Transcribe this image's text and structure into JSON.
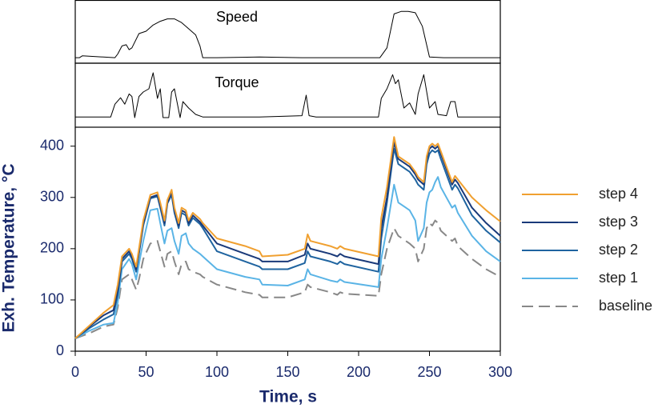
{
  "chart_data": [
    {
      "type": "line",
      "title": "Speed",
      "xlim": [
        0,
        300
      ],
      "ylim": [
        0,
        100
      ],
      "series": [
        {
          "name": "Speed",
          "color": "#000000",
          "x": [
            0,
            3,
            5,
            28,
            30,
            33,
            36,
            38,
            40,
            45,
            50,
            55,
            60,
            65,
            70,
            75,
            80,
            85,
            88,
            90,
            100,
            130,
            160,
            200,
            215,
            220,
            225,
            230,
            235,
            240,
            245,
            250,
            260,
            300
          ],
          "values": [
            9,
            9,
            12,
            9,
            15,
            28,
            30,
            22,
            25,
            48,
            52,
            62,
            68,
            72,
            72,
            66,
            56,
            46,
            28,
            9,
            9,
            10,
            9,
            9,
            9,
            25,
            80,
            84,
            84,
            82,
            60,
            10,
            9,
            9
          ]
        }
      ]
    },
    {
      "type": "line",
      "title": "Torque",
      "xlim": [
        0,
        300
      ],
      "ylim": [
        0,
        100
      ],
      "series": [
        {
          "name": "Torque",
          "color": "#000000",
          "x": [
            0,
            25,
            28,
            32,
            35,
            38,
            40,
            42,
            45,
            48,
            52,
            55,
            58,
            60,
            62,
            66,
            68,
            70,
            74,
            76,
            80,
            85,
            90,
            130,
            160,
            163,
            165,
            170,
            214,
            216,
            220,
            224,
            226,
            228,
            232,
            236,
            240,
            242,
            246,
            250,
            254,
            256,
            262,
            265,
            268,
            270,
            300
          ],
          "values": [
            16,
            16,
            36,
            46,
            36,
            52,
            48,
            15,
            48,
            55,
            60,
            85,
            45,
            60,
            15,
            15,
            55,
            60,
            15,
            40,
            30,
            20,
            16,
            16,
            18,
            50,
            18,
            16,
            16,
            45,
            60,
            82,
            68,
            74,
            30,
            38,
            20,
            52,
            82,
            30,
            40,
            20,
            18,
            40,
            40,
            16,
            16
          ]
        }
      ]
    },
    {
      "type": "line",
      "x_label": "Time, s",
      "y_label": "Exh. Temperature, °C",
      "xlim": [
        0,
        300
      ],
      "xticks": [
        0,
        50,
        100,
        150,
        200,
        250,
        300
      ],
      "ylim": [
        0,
        437
      ],
      "yticks": [
        0,
        100,
        200,
        300,
        400
      ],
      "legend": "right",
      "x": [
        0,
        10,
        20,
        27,
        30,
        33,
        38,
        40,
        43,
        45,
        48,
        53,
        58,
        60,
        63,
        65,
        68,
        70,
        73,
        75,
        78,
        80,
        83,
        88,
        90,
        100,
        120,
        130,
        132,
        150,
        162,
        164,
        166,
        180,
        185,
        187,
        190,
        214,
        216,
        220,
        225,
        228,
        236,
        240,
        242,
        246,
        248,
        250,
        252,
        254,
        256,
        258,
        262,
        266,
        268,
        270,
        280,
        290,
        300
      ],
      "series": [
        {
          "name": "step 4",
          "color": "#f0a030",
          "dashed": false,
          "values": [
            25,
            50,
            75,
            90,
            130,
            185,
            200,
            190,
            165,
            200,
            255,
            305,
            310,
            290,
            255,
            295,
            315,
            280,
            250,
            280,
            275,
            255,
            270,
            258,
            250,
            220,
            205,
            195,
            185,
            188,
            200,
            228,
            215,
            205,
            200,
            205,
            200,
            185,
            260,
            320,
            418,
            380,
            365,
            350,
            340,
            330,
            380,
            400,
            405,
            400,
            405,
            390,
            360,
            330,
            342,
            335,
            300,
            275,
            253
          ]
        },
        {
          "name": "step 3",
          "color": "#1a3a7a",
          "dashed": false,
          "values": [
            25,
            48,
            70,
            80,
            120,
            180,
            195,
            185,
            160,
            195,
            250,
            300,
            305,
            285,
            250,
            290,
            310,
            275,
            245,
            275,
            270,
            250,
            265,
            252,
            245,
            210,
            190,
            180,
            175,
            175,
            188,
            210,
            200,
            190,
            185,
            190,
            185,
            170,
            240,
            300,
            408,
            375,
            360,
            345,
            335,
            325,
            375,
            395,
            400,
            395,
            400,
            385,
            355,
            325,
            335,
            328,
            280,
            250,
            225
          ]
        },
        {
          "name": "step 2",
          "color": "#1f64a0",
          "dashed": false,
          "values": [
            25,
            45,
            62,
            72,
            110,
            175,
            190,
            180,
            155,
            190,
            245,
            298,
            302,
            280,
            245,
            288,
            305,
            270,
            240,
            270,
            265,
            245,
            260,
            248,
            240,
            195,
            175,
            165,
            160,
            160,
            172,
            195,
            185,
            175,
            170,
            175,
            170,
            155,
            220,
            290,
            395,
            365,
            350,
            335,
            325,
            315,
            365,
            385,
            392,
            388,
            392,
            375,
            345,
            315,
            325,
            318,
            265,
            235,
            212
          ]
        },
        {
          "name": "step 1",
          "color": "#5ab4e6",
          "dashed": false,
          "values": [
            25,
            40,
            52,
            55,
            95,
            160,
            180,
            170,
            140,
            170,
            215,
            275,
            278,
            250,
            210,
            235,
            240,
            215,
            190,
            225,
            230,
            210,
            200,
            190,
            185,
            160,
            145,
            140,
            130,
            128,
            140,
            160,
            150,
            138,
            135,
            140,
            135,
            125,
            180,
            240,
            325,
            290,
            275,
            255,
            215,
            240,
            290,
            310,
            315,
            330,
            340,
            320,
            300,
            280,
            285,
            270,
            225,
            195,
            175
          ]
        },
        {
          "name": "baseline",
          "color": "#888888",
          "dashed": true,
          "values": [
            25,
            35,
            48,
            52,
            85,
            140,
            150,
            140,
            120,
            140,
            180,
            210,
            215,
            195,
            165,
            190,
            195,
            175,
            150,
            170,
            175,
            160,
            155,
            150,
            145,
            130,
            115,
            110,
            105,
            105,
            115,
            130,
            125,
            115,
            110,
            115,
            112,
            108,
            150,
            200,
            240,
            225,
            210,
            200,
            175,
            200,
            240,
            250,
            245,
            255,
            250,
            235,
            225,
            215,
            220,
            205,
            180,
            160,
            145
          ]
        }
      ]
    }
  ]
}
